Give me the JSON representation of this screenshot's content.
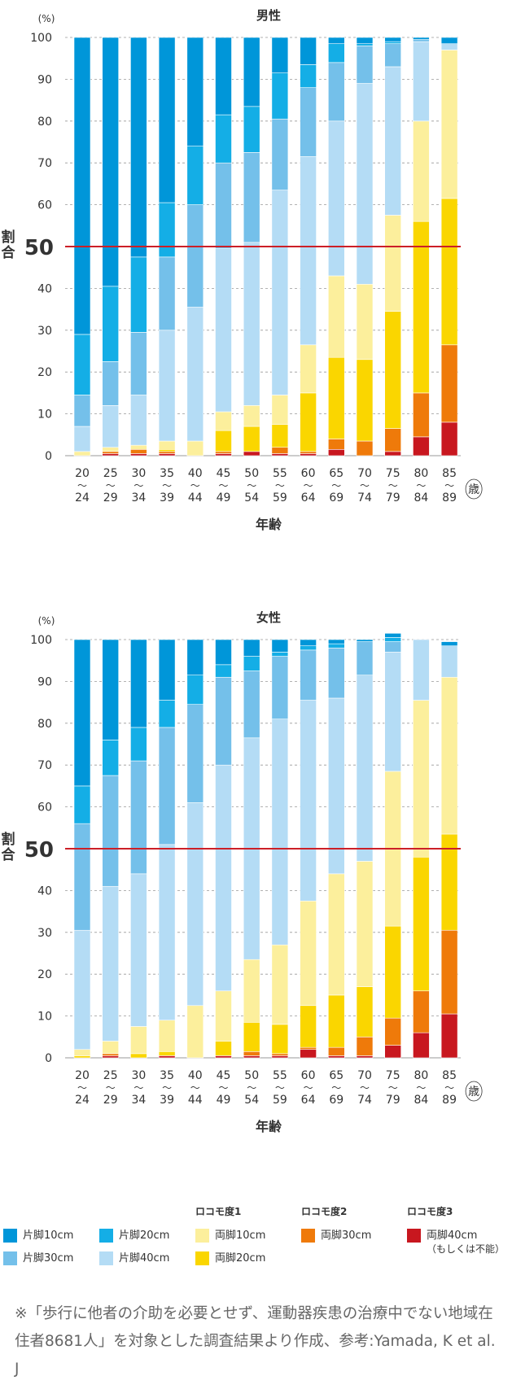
{
  "colors": {
    "one_leg_10": "#0096d9",
    "one_leg_20": "#14aee6",
    "one_leg_30": "#74c0ea",
    "one_leg_40": "#b4dcf5",
    "both_legs_10": "#fcef9c",
    "both_legs_20": "#fad600",
    "both_legs_30": "#ef7a0a",
    "both_legs_40": "#c8171f",
    "ref_line": "#cc1f27",
    "grid": "#999999"
  },
  "chart_data": [
    {
      "type": "bar",
      "stacked": true,
      "title": "男性",
      "y_unit": "(%)",
      "ylabel": "割合",
      "xlabel": "年齢",
      "x_unit": "歳",
      "ylim": [
        0,
        100
      ],
      "yticks": [
        0,
        10,
        20,
        30,
        40,
        50,
        60,
        70,
        80,
        90,
        100
      ],
      "reference_line": {
        "value": 50,
        "label": "50"
      },
      "grid": true,
      "categories": [
        "20～24",
        "25～29",
        "30～34",
        "35～39",
        "40～44",
        "45～49",
        "50～54",
        "55～59",
        "60～64",
        "65～69",
        "70～74",
        "75～79",
        "80～84",
        "85～89"
      ],
      "category_labels": [
        {
          "from": "20",
          "to": "24"
        },
        {
          "from": "25",
          "to": "29"
        },
        {
          "from": "30",
          "to": "34"
        },
        {
          "from": "35",
          "to": "39"
        },
        {
          "from": "40",
          "to": "44"
        },
        {
          "from": "45",
          "to": "49"
        },
        {
          "from": "50",
          "to": "54"
        },
        {
          "from": "55",
          "to": "59"
        },
        {
          "from": "60",
          "to": "64"
        },
        {
          "from": "65",
          "to": "69"
        },
        {
          "from": "70",
          "to": "74"
        },
        {
          "from": "75",
          "to": "79"
        },
        {
          "from": "80",
          "to": "84"
        },
        {
          "from": "85",
          "to": "89"
        }
      ],
      "series": [
        {
          "name": "両脚40cm（もしくは不能）",
          "color_key": "both_legs_40",
          "values": [
            0,
            0.5,
            0.5,
            0.5,
            0,
            0.5,
            1,
            0.5,
            0.5,
            1.5,
            0,
            1,
            4.5,
            8
          ]
        },
        {
          "name": "両脚30cm",
          "color_key": "both_legs_30",
          "values": [
            0,
            0.5,
            1,
            0.5,
            0,
            0.5,
            0,
            1.5,
            0.5,
            2.5,
            3.5,
            5.5,
            10.5,
            18.5
          ]
        },
        {
          "name": "両脚20cm",
          "color_key": "both_legs_20",
          "values": [
            0,
            0,
            0,
            0.5,
            0,
            5,
            6,
            5.5,
            14,
            19.5,
            19.5,
            28,
            41,
            35
          ]
        },
        {
          "name": "両脚10cm",
          "color_key": "both_legs_10",
          "values": [
            1,
            1,
            1,
            2,
            3.5,
            4.5,
            5,
            7,
            11.5,
            19.5,
            18,
            23,
            24,
            35.5
          ]
        },
        {
          "name": "片脚40cm",
          "color_key": "one_leg_40",
          "values": [
            6,
            10,
            12,
            26.5,
            32,
            39,
            39,
            49,
            45,
            37,
            48,
            35.5,
            19,
            1.5
          ]
        },
        {
          "name": "片脚30cm",
          "color_key": "one_leg_30",
          "values": [
            7.5,
            10.5,
            15,
            17.5,
            24.5,
            20.5,
            21.5,
            17,
            16.5,
            14,
            9,
            5.5,
            0.5,
            0
          ]
        },
        {
          "name": "片脚20cm",
          "color_key": "one_leg_20",
          "values": [
            14.5,
            18,
            18,
            13,
            14,
            11.5,
            11,
            11,
            5.5,
            4.5,
            0.5,
            0.5,
            0,
            0
          ]
        },
        {
          "name": "片脚10cm",
          "color_key": "one_leg_10",
          "values": [
            71,
            59.5,
            52.5,
            39.5,
            26,
            18.5,
            16.5,
            8.5,
            6.5,
            1.5,
            1.5,
            1,
            0.5,
            1.5
          ]
        }
      ]
    },
    {
      "type": "bar",
      "stacked": true,
      "title": "女性",
      "y_unit": "(%)",
      "ylabel": "割合",
      "xlabel": "年齢",
      "x_unit": "歳",
      "ylim": [
        0,
        100
      ],
      "yticks": [
        0,
        10,
        20,
        30,
        40,
        50,
        60,
        70,
        80,
        90,
        100
      ],
      "reference_line": {
        "value": 50,
        "label": "50"
      },
      "grid": true,
      "categories": [
        "20～24",
        "25～29",
        "30～34",
        "35～39",
        "40～44",
        "45～49",
        "50～54",
        "55～59",
        "60～64",
        "65～69",
        "70～74",
        "75～79",
        "80～84",
        "85～89"
      ],
      "category_labels": [
        {
          "from": "20",
          "to": "24"
        },
        {
          "from": "25",
          "to": "29"
        },
        {
          "from": "30",
          "to": "34"
        },
        {
          "from": "35",
          "to": "39"
        },
        {
          "from": "40",
          "to": "44"
        },
        {
          "from": "45",
          "to": "49"
        },
        {
          "from": "50",
          "to": "54"
        },
        {
          "from": "55",
          "to": "59"
        },
        {
          "from": "60",
          "to": "64"
        },
        {
          "from": "65",
          "to": "69"
        },
        {
          "from": "70",
          "to": "74"
        },
        {
          "from": "75",
          "to": "79"
        },
        {
          "from": "80",
          "to": "84"
        },
        {
          "from": "85",
          "to": "89"
        }
      ],
      "series": [
        {
          "name": "両脚40cm（もしくは不能）",
          "color_key": "both_legs_40",
          "values": [
            0,
            0.5,
            0,
            0.5,
            0,
            0.5,
            0.5,
            0.5,
            2,
            0.5,
            0.5,
            3,
            6,
            10.5
          ]
        },
        {
          "name": "両脚30cm",
          "color_key": "both_legs_30",
          "values": [
            0,
            0.5,
            0,
            0,
            0,
            0,
            1,
            0.5,
            0.5,
            2,
            4.5,
            6.5,
            10,
            20
          ]
        },
        {
          "name": "両脚20cm",
          "color_key": "both_legs_20",
          "values": [
            0.5,
            0,
            1,
            1,
            0,
            3.5,
            7,
            7,
            10,
            12.5,
            12,
            22,
            32,
            23
          ]
        },
        {
          "name": "両脚10cm",
          "color_key": "both_legs_10",
          "values": [
            1.5,
            3,
            6.5,
            7.5,
            12.5,
            12,
            15,
            19,
            25,
            29,
            30,
            37,
            37.5,
            37.5
          ]
        },
        {
          "name": "片脚40cm",
          "color_key": "one_leg_40",
          "values": [
            28.5,
            37,
            36.5,
            42,
            48.5,
            54,
            53,
            54,
            48,
            42,
            44.5,
            28.5,
            14.5,
            7.5
          ]
        },
        {
          "name": "片脚30cm",
          "color_key": "one_leg_30",
          "values": [
            25.5,
            26.5,
            27,
            28,
            23.5,
            21,
            16,
            15,
            12,
            12,
            8,
            2.5,
            0,
            0
          ]
        },
        {
          "name": "片脚20cm",
          "color_key": "one_leg_20",
          "values": [
            9,
            8.5,
            8,
            6.5,
            7,
            3,
            3.5,
            1,
            1,
            1,
            0,
            1,
            0,
            0
          ]
        },
        {
          "name": "片脚10cm",
          "color_key": "one_leg_10",
          "values": [
            35,
            24,
            21,
            14.5,
            8.5,
            6,
            4,
            3,
            1.5,
            1,
            0.5,
            1,
            0,
            1
          ]
        }
      ]
    }
  ],
  "legend": {
    "groups": [
      {
        "key": "g1",
        "label": "ロコモ度1"
      },
      {
        "key": "g2",
        "label": "ロコモ度2"
      },
      {
        "key": "g3",
        "label": "ロコモ度3"
      }
    ],
    "items": [
      {
        "label": "片脚10cm",
        "sub": "",
        "color_key": "one_leg_10"
      },
      {
        "label": "片脚20cm",
        "sub": "",
        "color_key": "one_leg_20"
      },
      {
        "label": "片脚30cm",
        "sub": "",
        "color_key": "one_leg_30"
      },
      {
        "label": "片脚40cm",
        "sub": "",
        "color_key": "one_leg_40"
      },
      {
        "label": "両脚10cm",
        "sub": "",
        "color_key": "both_legs_10"
      },
      {
        "label": "両脚20cm",
        "sub": "",
        "color_key": "both_legs_20"
      },
      {
        "label": "両脚30cm",
        "sub": "",
        "color_key": "both_legs_30"
      },
      {
        "label": "両脚40cm",
        "sub": "（もしくは不能）",
        "color_key": "both_legs_40"
      }
    ]
  },
  "footnote": "※「歩行に他者の介助を必要とせず、運動器疾患の治療中でない地域在住者8681人」を対象とした調査結果より作成、参考:Yamada, K et al. J"
}
